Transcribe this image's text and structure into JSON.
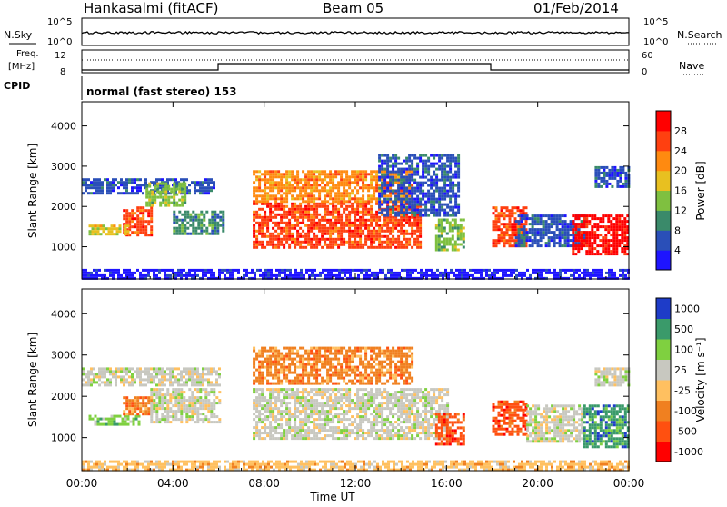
{
  "header": {
    "station": "Hankasalmi (fitACF)",
    "beam": "Beam 05",
    "date": "01/Feb/2014"
  },
  "top_panels": {
    "nsky_label": "N.Sky",
    "nsearch_label": "N.Search",
    "noise_ticks": [
      "10^5",
      "10^0"
    ],
    "freq_label_1": "Freq.",
    "freq_label_2": "[MHz]",
    "freq_ticks": [
      "12",
      "8"
    ],
    "nave_ticks": [
      "60",
      "0"
    ],
    "nave_label": "Nave",
    "cpid_label": "CPID",
    "cpid_text": "normal (fast stereo) 153"
  },
  "chart_data": [
    {
      "type": "heatmap",
      "title": "Power",
      "ylabel": "Slant Range [km]",
      "colorbar_label": "Power [dB]",
      "colorbar_ticks": [
        "28",
        "24",
        "20",
        "16",
        "12",
        "8",
        "4"
      ],
      "colors": [
        "#1e14ff",
        "#2a4fb8",
        "#3a8a6a",
        "#7fc040",
        "#e8c020",
        "#ff8a10",
        "#ff4010",
        "#ff0000"
      ],
      "ylim": [
        200,
        4600
      ],
      "y_ticks": [
        "4000",
        "3000",
        "2000",
        "1000"
      ],
      "x_ticks": [
        "00:00",
        "04:00",
        "08:00",
        "12:00",
        "16:00",
        "20:00",
        "00:00"
      ],
      "regions": [
        {
          "t0": 0.0,
          "t1": 5.8,
          "r0": 2300,
          "r1": 2700,
          "level": 1
        },
        {
          "t0": 1.8,
          "t1": 3.0,
          "r0": 1300,
          "r1": 2000,
          "level": 6
        },
        {
          "t0": 0.3,
          "t1": 2.0,
          "r0": 1300,
          "r1": 1550,
          "level": 4
        },
        {
          "t0": 2.8,
          "t1": 4.5,
          "r0": 2000,
          "r1": 2600,
          "level": 3
        },
        {
          "t0": 4.0,
          "t1": 6.2,
          "r0": 1300,
          "r1": 1900,
          "level": 2
        },
        {
          "t0": 7.5,
          "t1": 14.8,
          "r0": 950,
          "r1": 2100,
          "level": 6
        },
        {
          "t0": 7.5,
          "t1": 14.5,
          "r0": 2100,
          "r1": 2900,
          "level": 5
        },
        {
          "t0": 13.0,
          "t1": 16.5,
          "r0": 1800,
          "r1": 3300,
          "level": 1
        },
        {
          "t0": 15.5,
          "t1": 16.8,
          "r0": 900,
          "r1": 1700,
          "level": 3
        },
        {
          "t0": 18.0,
          "t1": 19.5,
          "r0": 1000,
          "r1": 2000,
          "level": 6
        },
        {
          "t0": 19.0,
          "t1": 22.0,
          "r0": 1000,
          "r1": 1800,
          "level": 1
        },
        {
          "t0": 21.5,
          "t1": 24.0,
          "r0": 800,
          "r1": 1800,
          "level": 7
        },
        {
          "t0": 22.5,
          "t1": 24.0,
          "r0": 2500,
          "r1": 3000,
          "level": 1
        },
        {
          "t0": 0.0,
          "t1": 24.0,
          "r0": 220,
          "r1": 450,
          "level": 0
        }
      ]
    },
    {
      "type": "heatmap",
      "title": "Velocity",
      "ylabel": "Slant Range [km]",
      "colorbar_label": "Velocity [m s⁻¹]",
      "colorbar_ticks": [
        "1000",
        "500",
        "100",
        "25",
        "-25",
        "-100",
        "-500",
        "-1000"
      ],
      "colors": [
        "#ff0000",
        "#ff5010",
        "#f08020",
        "#ffc060",
        "#c8c8c0",
        "#7fd040",
        "#3a9a6a",
        "#1e3cc8"
      ],
      "ylim": [
        200,
        4600
      ],
      "y_ticks": [
        "4000",
        "3000",
        "2000",
        "1000"
      ],
      "x_ticks": [
        "00:00",
        "04:00",
        "08:00",
        "12:00",
        "16:00",
        "20:00",
        "00:00"
      ],
      "xlabel": "Time UT",
      "regions": [
        {
          "t0": 0.0,
          "t1": 6.0,
          "r0": 2300,
          "r1": 2700,
          "level": 4
        },
        {
          "t0": 0.3,
          "t1": 2.5,
          "r0": 1300,
          "r1": 1550,
          "level": 5
        },
        {
          "t0": 1.8,
          "t1": 3.0,
          "r0": 1550,
          "r1": 2000,
          "level": 2
        },
        {
          "t0": 3.0,
          "t1": 6.0,
          "r0": 1400,
          "r1": 2200,
          "level": 4
        },
        {
          "t0": 7.5,
          "t1": 16.0,
          "r0": 950,
          "r1": 2200,
          "level": 4
        },
        {
          "t0": 7.5,
          "t1": 14.5,
          "r0": 2300,
          "r1": 3200,
          "level": 2
        },
        {
          "t0": 15.5,
          "t1": 16.8,
          "r0": 850,
          "r1": 1600,
          "level": 1
        },
        {
          "t0": 18.0,
          "t1": 19.5,
          "r0": 1100,
          "r1": 1900,
          "level": 1
        },
        {
          "t0": 19.5,
          "t1": 22.0,
          "r0": 900,
          "r1": 1800,
          "level": 4
        },
        {
          "t0": 22.0,
          "t1": 24.0,
          "r0": 800,
          "r1": 1800,
          "level": 6
        },
        {
          "t0": 22.5,
          "t1": 24.0,
          "r0": 2300,
          "r1": 2700,
          "level": 4
        },
        {
          "t0": 0.0,
          "t1": 24.0,
          "r0": 220,
          "r1": 450,
          "level": 3
        }
      ]
    }
  ]
}
